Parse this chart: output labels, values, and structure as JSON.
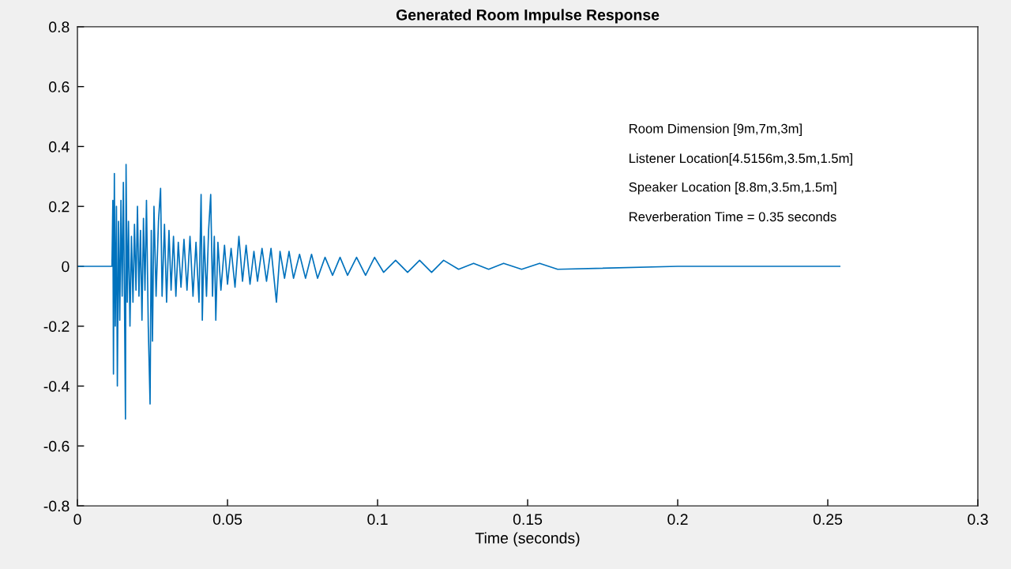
{
  "chart_data": {
    "type": "line",
    "title": "Generated Room Impulse Response",
    "xlabel": "Time (seconds)",
    "x": [
      0,
      0.0115,
      0.0118,
      0.012,
      0.0123,
      0.0126,
      0.013,
      0.0133,
      0.0137,
      0.0141,
      0.0145,
      0.0149,
      0.0153,
      0.0157,
      0.016,
      0.0162,
      0.0166,
      0.017,
      0.0175,
      0.018,
      0.0185,
      0.019,
      0.0195,
      0.02,
      0.0205,
      0.021,
      0.0215,
      0.022,
      0.0225,
      0.023,
      0.0236,
      0.0242,
      0.0246,
      0.025,
      0.0255,
      0.0262,
      0.027,
      0.0277,
      0.0282,
      0.029,
      0.0297,
      0.0305,
      0.0312,
      0.032,
      0.0328,
      0.0336,
      0.0345,
      0.0355,
      0.0365,
      0.0375,
      0.0385,
      0.0395,
      0.0405,
      0.0412,
      0.0416,
      0.0422,
      0.043,
      0.0437,
      0.0444,
      0.045,
      0.0456,
      0.0461,
      0.0468,
      0.0478,
      0.049,
      0.05,
      0.0512,
      0.0525,
      0.0538,
      0.055,
      0.0562,
      0.0575,
      0.0588,
      0.06,
      0.0615,
      0.063,
      0.0645,
      0.0663,
      0.0675,
      0.069,
      0.0705,
      0.072,
      0.074,
      0.076,
      0.078,
      0.08,
      0.0825,
      0.085,
      0.0875,
      0.09,
      0.093,
      0.096,
      0.099,
      0.102,
      0.106,
      0.11,
      0.114,
      0.118,
      0.122,
      0.127,
      0.132,
      0.137,
      0.142,
      0.148,
      0.154,
      0.16,
      0.2,
      0.254
    ],
    "values": [
      0,
      0,
      0.22,
      -0.36,
      0.31,
      -0.2,
      0.2,
      -0.4,
      0.15,
      -0.18,
      0.22,
      -0.1,
      0.28,
      -0.15,
      -0.51,
      0.34,
      -0.12,
      0.15,
      -0.2,
      0.1,
      -0.12,
      0.14,
      -0.08,
      0.2,
      -0.1,
      0.12,
      -0.18,
      0.16,
      -0.08,
      0.22,
      -0.2,
      -0.46,
      0.12,
      -0.25,
      0.2,
      -0.1,
      0.15,
      0.26,
      -0.1,
      0.14,
      -0.12,
      0.12,
      -0.08,
      0.1,
      -0.1,
      0.08,
      -0.07,
      0.09,
      -0.08,
      0.1,
      -0.1,
      0.08,
      -0.12,
      0.24,
      -0.18,
      0.1,
      -0.1,
      0.12,
      0.24,
      -0.1,
      0.1,
      -0.18,
      0.08,
      -0.08,
      0.07,
      -0.06,
      0.06,
      -0.07,
      0.1,
      -0.05,
      0.07,
      -0.06,
      0.05,
      -0.05,
      0.06,
      -0.05,
      0.06,
      -0.12,
      0.05,
      -0.04,
      0.05,
      -0.04,
      0.04,
      -0.04,
      0.04,
      -0.04,
      0.03,
      -0.03,
      0.03,
      -0.03,
      0.03,
      -0.03,
      0.03,
      -0.02,
      0.02,
      -0.02,
      0.02,
      -0.02,
      0.02,
      -0.01,
      0.01,
      -0.01,
      0.01,
      -0.01,
      0.01,
      -0.01,
      0,
      0
    ],
    "color": "#0072bd",
    "xlim": [
      0,
      0.3
    ],
    "xticks": [
      0,
      0.05,
      0.1,
      0.15,
      0.2,
      0.25,
      0.3
    ],
    "ylim": [
      -0.8,
      0.8
    ],
    "yticks": [
      -0.8,
      -0.6,
      -0.4,
      -0.2,
      0,
      0.2,
      0.4,
      0.6,
      0.8
    ],
    "annotations": [
      "Room Dimension [9m,7m,3m]",
      "Listener Location[4.5156m,3.5m,1.5m]",
      "Speaker Location [8.8m,3.5m,1.5m]",
      "Reverberation Time = 0.35 seconds"
    ]
  }
}
